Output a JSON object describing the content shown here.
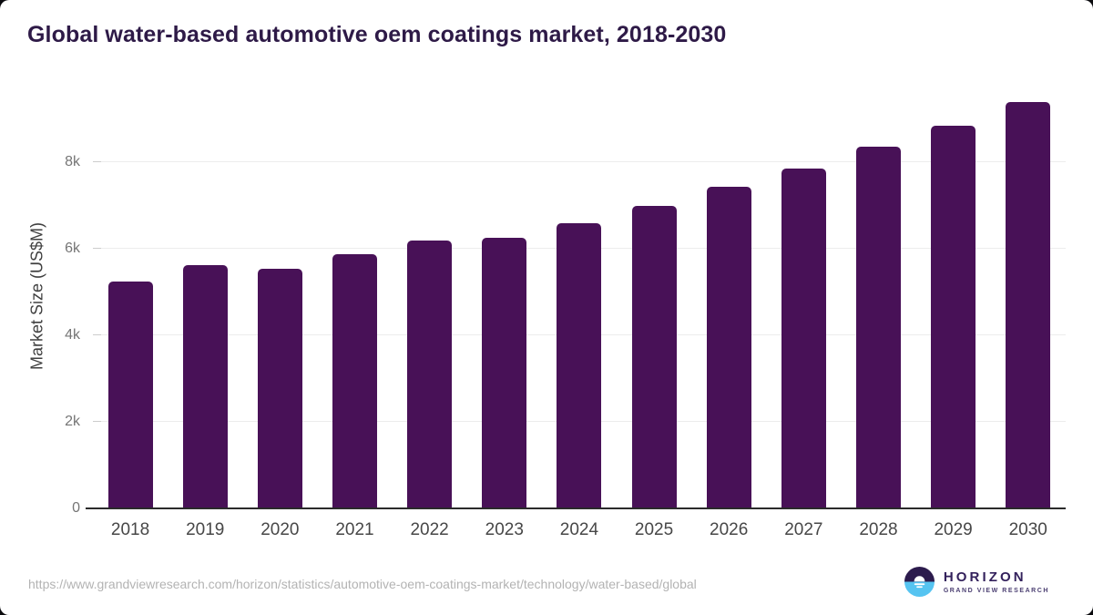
{
  "title": "Global water-based automotive oem coatings market, 2018-2030",
  "chart_data": {
    "type": "bar",
    "title": "Global water-based automotive oem coatings market, 2018-2030",
    "categories": [
      "2018",
      "2019",
      "2020",
      "2021",
      "2022",
      "2023",
      "2024",
      "2025",
      "2026",
      "2027",
      "2028",
      "2029",
      "2030"
    ],
    "values": [
      5250,
      5630,
      5540,
      5870,
      6200,
      6250,
      6600,
      7000,
      7430,
      7850,
      8350,
      8850,
      9400
    ],
    "xlabel": "",
    "ylabel": "Market Size (US$M)",
    "ylim": [
      0,
      9600
    ],
    "yticks": [
      {
        "value": 0,
        "label": "0"
      },
      {
        "value": 2000,
        "label": "2k"
      },
      {
        "value": 4000,
        "label": "4k"
      },
      {
        "value": 6000,
        "label": "6k"
      },
      {
        "value": 8000,
        "label": "8k"
      }
    ],
    "grid": true,
    "legend": "none",
    "bar_color": "#481157"
  },
  "footer": {
    "source_url": "https://www.grandviewresearch.com/horizon/statistics/automotive-oem-coatings-market/technology/water-based/global",
    "logo": {
      "name": "HORIZON",
      "subtitle": "GRAND VIEW RESEARCH"
    }
  },
  "colors": {
    "title_text": "#2e1a47",
    "bar": "#481157",
    "axis_line": "#2b2b2b",
    "gridline": "#ececec",
    "tick_label": "#757575",
    "year_label": "#474747",
    "url_text": "#b3b3b3",
    "logo_dark": "#2c1b4d",
    "logo_blue": "#56c4f1"
  }
}
